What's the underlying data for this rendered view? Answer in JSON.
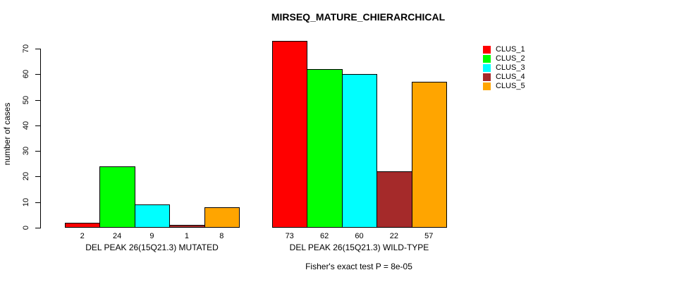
{
  "chart_data": {
    "type": "bar",
    "title": "MIRSEQ_MATURE_CHIERARCHICAL",
    "ylabel": "number of cases",
    "xlabel": "",
    "ylim": [
      0,
      70
    ],
    "yticks": [
      0,
      10,
      20,
      30,
      40,
      50,
      60,
      70
    ],
    "grid": false,
    "legend_position": "right",
    "categories": [
      "DEL PEAK 26(15Q21.3) MUTATED",
      "DEL PEAK 26(15Q21.3) WILD-TYPE"
    ],
    "series": [
      {
        "name": "CLUS_1",
        "color": "#FF0000",
        "values": [
          2,
          73
        ]
      },
      {
        "name": "CLUS_2",
        "color": "#00FF00",
        "values": [
          24,
          62
        ]
      },
      {
        "name": "CLUS_3",
        "color": "#00FFFF",
        "values": [
          9,
          60
        ]
      },
      {
        "name": "CLUS_4",
        "color": "#A52A2A",
        "values": [
          1,
          22
        ]
      },
      {
        "name": "CLUS_5",
        "color": "#FFA500",
        "values": [
          8,
          57
        ]
      }
    ],
    "bar_value_labels_shown": true,
    "annotation": "Fisher's exact test P = 8e-05",
    "text_color": "#000000",
    "background_color": "#FFFFFF"
  }
}
